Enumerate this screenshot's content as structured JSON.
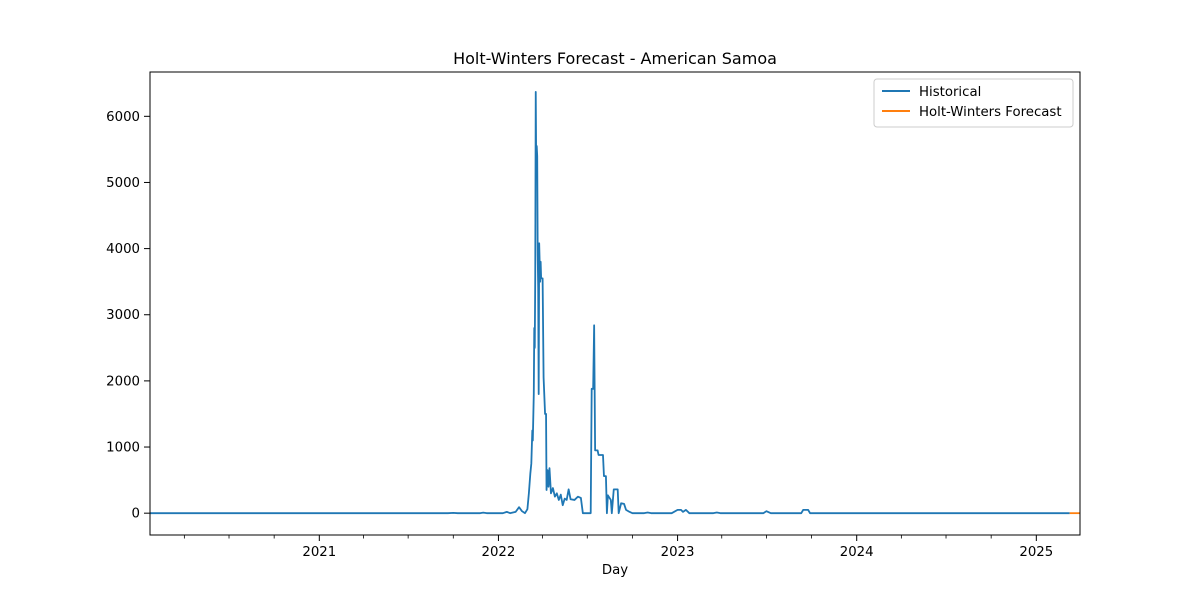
{
  "chart_data": {
    "type": "line",
    "title": "Holt-Winters Forecast - American Samoa",
    "xlabel": "Day",
    "ylabel": "",
    "x_axis_type": "date",
    "xlim": [
      "2020-01-22",
      "2025-03-31"
    ],
    "ylim": [
      -330,
      6670
    ],
    "x_ticks": [
      {
        "date": "2021-01-01",
        "label": "2021"
      },
      {
        "date": "2022-01-01",
        "label": "2022"
      },
      {
        "date": "2023-01-01",
        "label": "2023"
      },
      {
        "date": "2024-01-01",
        "label": "2024"
      },
      {
        "date": "2025-01-01",
        "label": "2025"
      }
    ],
    "x_minor_ticks": [
      "2020-04-01",
      "2020-07-01",
      "2020-10-01",
      "2021-04-01",
      "2021-07-01",
      "2021-10-01",
      "2022-04-01",
      "2022-07-01",
      "2022-10-01",
      "2023-04-01",
      "2023-07-01",
      "2023-10-01",
      "2024-04-01",
      "2024-07-01",
      "2024-10-01"
    ],
    "y_ticks": [
      0,
      1000,
      2000,
      3000,
      4000,
      5000,
      6000
    ],
    "grid": false,
    "legend_position": "top-right",
    "colors": {
      "historical": "#1f77b4",
      "forecast": "#ff7f0e"
    },
    "series": [
      {
        "name": "Historical",
        "color": "#1f77b4",
        "points": [
          [
            "2020-01-22",
            0
          ],
          [
            "2021-09-20",
            0
          ],
          [
            "2021-10-01",
            5
          ],
          [
            "2021-10-10",
            0
          ],
          [
            "2021-11-25",
            0
          ],
          [
            "2021-12-01",
            8
          ],
          [
            "2021-12-08",
            0
          ],
          [
            "2022-01-10",
            0
          ],
          [
            "2022-01-18",
            20
          ],
          [
            "2022-01-25",
            0
          ],
          [
            "2022-02-05",
            20
          ],
          [
            "2022-02-12",
            90
          ],
          [
            "2022-02-18",
            30
          ],
          [
            "2022-02-24",
            0
          ],
          [
            "2022-03-01",
            60
          ],
          [
            "2022-03-04",
            300
          ],
          [
            "2022-03-07",
            600
          ],
          [
            "2022-03-09",
            750
          ],
          [
            "2022-03-11",
            1250
          ],
          [
            "2022-03-12",
            1100
          ],
          [
            "2022-03-14",
            1800
          ],
          [
            "2022-03-15",
            2800
          ],
          [
            "2022-03-16",
            2500
          ],
          [
            "2022-03-17",
            3600
          ],
          [
            "2022-03-18",
            6370
          ],
          [
            "2022-03-19",
            5200
          ],
          [
            "2022-03-20",
            5550
          ],
          [
            "2022-03-21",
            5400
          ],
          [
            "2022-03-22",
            3900
          ],
          [
            "2022-03-23",
            3400
          ],
          [
            "2022-03-24",
            1800
          ],
          [
            "2022-03-25",
            4080
          ],
          [
            "2022-03-27",
            3500
          ],
          [
            "2022-03-28",
            3800
          ],
          [
            "2022-03-29",
            3550
          ],
          [
            "2022-04-01",
            3550
          ],
          [
            "2022-04-03",
            2050
          ],
          [
            "2022-04-06",
            1500
          ],
          [
            "2022-04-08",
            1500
          ],
          [
            "2022-04-09",
            350
          ],
          [
            "2022-04-11",
            650
          ],
          [
            "2022-04-13",
            400
          ],
          [
            "2022-04-15",
            680
          ],
          [
            "2022-04-18",
            300
          ],
          [
            "2022-04-22",
            380
          ],
          [
            "2022-04-26",
            250
          ],
          [
            "2022-04-30",
            300
          ],
          [
            "2022-05-04",
            200
          ],
          [
            "2022-05-08",
            280
          ],
          [
            "2022-05-12",
            120
          ],
          [
            "2022-05-16",
            220
          ],
          [
            "2022-05-20",
            200
          ],
          [
            "2022-05-24",
            360
          ],
          [
            "2022-05-28",
            210
          ],
          [
            "2022-06-05",
            200
          ],
          [
            "2022-06-12",
            250
          ],
          [
            "2022-06-18",
            230
          ],
          [
            "2022-06-22",
            0
          ],
          [
            "2022-07-08",
            0
          ],
          [
            "2022-07-10",
            1880
          ],
          [
            "2022-07-13",
            1880
          ],
          [
            "2022-07-15",
            2840
          ],
          [
            "2022-07-17",
            950
          ],
          [
            "2022-07-22",
            950
          ],
          [
            "2022-07-24",
            880
          ],
          [
            "2022-08-02",
            880
          ],
          [
            "2022-08-04",
            560
          ],
          [
            "2022-08-08",
            560
          ],
          [
            "2022-08-10",
            0
          ],
          [
            "2022-08-12",
            270
          ],
          [
            "2022-08-18",
            200
          ],
          [
            "2022-08-20",
            0
          ],
          [
            "2022-08-24",
            360
          ],
          [
            "2022-09-01",
            360
          ],
          [
            "2022-09-03",
            0
          ],
          [
            "2022-09-08",
            150
          ],
          [
            "2022-09-14",
            140
          ],
          [
            "2022-09-18",
            50
          ],
          [
            "2022-09-25",
            20
          ],
          [
            "2022-10-01",
            0
          ],
          [
            "2022-10-25",
            0
          ],
          [
            "2022-11-01",
            10
          ],
          [
            "2022-11-08",
            0
          ],
          [
            "2022-12-20",
            0
          ],
          [
            "2023-01-01",
            50
          ],
          [
            "2023-01-08",
            50
          ],
          [
            "2023-01-12",
            20
          ],
          [
            "2023-01-18",
            50
          ],
          [
            "2023-01-25",
            0
          ],
          [
            "2023-03-15",
            0
          ],
          [
            "2023-03-22",
            10
          ],
          [
            "2023-03-29",
            0
          ],
          [
            "2023-06-25",
            0
          ],
          [
            "2023-07-01",
            30
          ],
          [
            "2023-07-10",
            0
          ],
          [
            "2023-09-10",
            0
          ],
          [
            "2023-09-14",
            50
          ],
          [
            "2023-09-24",
            50
          ],
          [
            "2023-09-28",
            0
          ],
          [
            "2025-03-10",
            0
          ]
        ]
      },
      {
        "name": "Holt-Winters Forecast",
        "color": "#ff7f0e",
        "points": [
          [
            "2025-03-10",
            0
          ],
          [
            "2025-03-31",
            0
          ]
        ]
      }
    ]
  }
}
